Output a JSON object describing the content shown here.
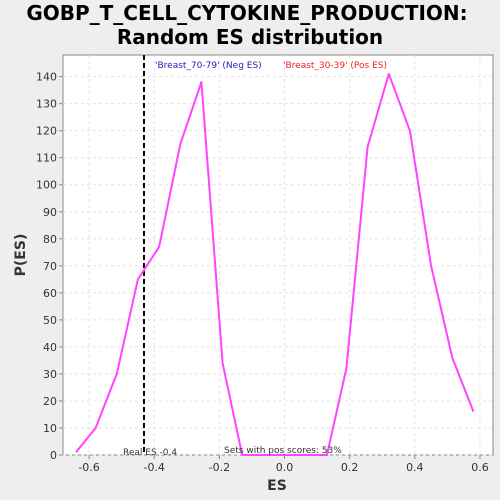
{
  "chart_data": {
    "type": "line",
    "title_lines": [
      "GOBP_T_CELL_CYTOKINE_PRODUCTION:",
      "Random ES distribution"
    ],
    "xlabel": "ES",
    "ylabel": "P(ES)",
    "xlim": [
      -0.68,
      0.64
    ],
    "ylim": [
      0,
      148
    ],
    "xticks": [
      -0.6,
      -0.4,
      -0.2,
      0.0,
      0.2,
      0.4,
      0.6
    ],
    "xtick_labels": [
      "-0.6",
      "-0.4",
      "-0.2",
      "0.0",
      "0.2",
      "0.4",
      "0.6"
    ],
    "yticks": [
      0,
      10,
      20,
      30,
      40,
      50,
      60,
      70,
      80,
      90,
      100,
      110,
      120,
      130,
      140
    ],
    "ytick_labels": [
      "0",
      "10",
      "20",
      "30",
      "40",
      "50",
      "60",
      "70",
      "80",
      "90",
      "100",
      "110",
      "120",
      "130",
      "140"
    ],
    "grid": true,
    "series": [
      {
        "color": "#ff44ff",
        "x": [
          -0.64,
          -0.58,
          -0.515,
          -0.45,
          -0.385,
          -0.32,
          -0.255,
          -0.19,
          -0.13,
          0.13,
          0.19,
          0.255,
          0.32,
          0.385,
          0.45,
          0.515,
          0.58
        ],
        "y": [
          1,
          10,
          30,
          65,
          77,
          115,
          138,
          34,
          0,
          0,
          32,
          114,
          141,
          120,
          70,
          36,
          16
        ]
      }
    ],
    "real_es": {
      "x": -0.4314,
      "label": "Real ES -0.4",
      "color": "#000000"
    },
    "annotations": {
      "neg_label": "'Breast_70-79' (Neg ES)",
      "neg_color": "#2222bb",
      "pos_label": "'Breast_30-39' (Pos ES)",
      "pos_color": "#ee2222",
      "pos_scores_note": "Sets with pos scores: 53%"
    }
  }
}
